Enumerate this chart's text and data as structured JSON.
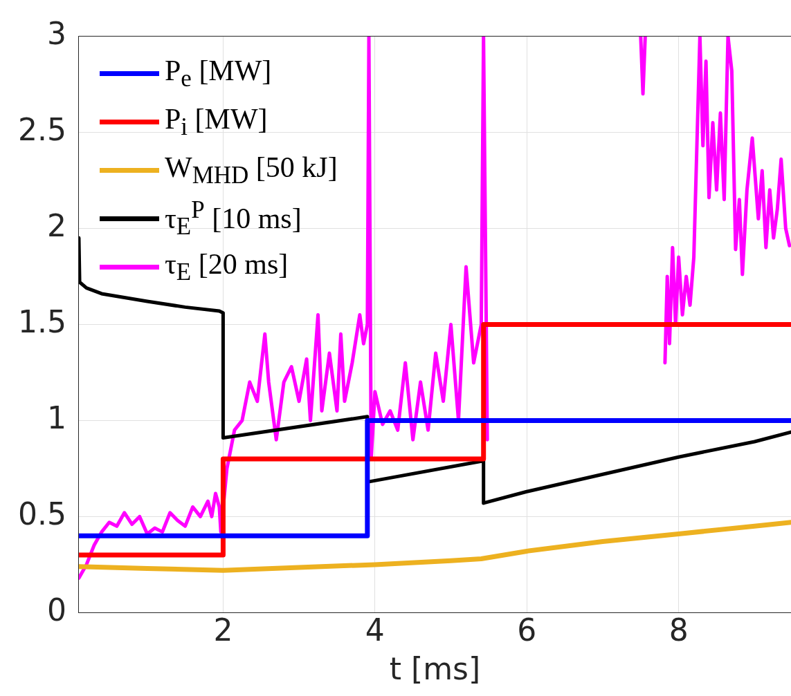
{
  "chart_data": {
    "type": "line",
    "xlabel": "t [ms]",
    "xlim": [
      0.1,
      9.48
    ],
    "ylim": [
      0,
      3
    ],
    "xticks": [
      2,
      4,
      6,
      8
    ],
    "yticks": [
      0,
      0.5,
      1,
      1.5,
      2,
      2.5,
      3
    ],
    "grid": true,
    "legend": "top left",
    "marker": "none",
    "line_style": "solid",
    "series": [
      {
        "name": "P$_{e}$ [MW]",
        "color": "#0000ff",
        "x": [
          0.1,
          3.9,
          3.9,
          9.48
        ],
        "values": [
          0.4,
          0.4,
          1.0,
          1.0
        ]
      },
      {
        "name": "P$_{i}$ [MW]",
        "color": "#ff0000",
        "x": [
          0.1,
          2.0,
          2.0,
          5.43,
          5.43,
          9.48
        ],
        "values": [
          0.3,
          0.3,
          0.8,
          0.8,
          1.5,
          1.5
        ]
      },
      {
        "name": "W$_{MHD}$ [50 kJ]",
        "color": "#edb120",
        "x": [
          0.1,
          1,
          2,
          3,
          4,
          5,
          5.4,
          6,
          7,
          8,
          9,
          9.48
        ],
        "values": [
          0.24,
          0.23,
          0.22,
          0.235,
          0.25,
          0.27,
          0.28,
          0.32,
          0.37,
          0.41,
          0.45,
          0.47
        ]
      },
      {
        "name": "τ$_{E}$$^{P}$ [10 ms]",
        "color": "#000000",
        "x": [
          0.1,
          0.11,
          0.2,
          0.4,
          0.7,
          1.0,
          1.5,
          1.95,
          2.0,
          2.0,
          3.9,
          3.9,
          5.43,
          5.43,
          6,
          7,
          8,
          9,
          9.48
        ],
        "values": [
          1.95,
          1.72,
          1.69,
          1.66,
          1.64,
          1.62,
          1.59,
          1.57,
          1.56,
          0.91,
          1.02,
          0.68,
          0.79,
          0.57,
          0.63,
          0.72,
          0.81,
          0.89,
          0.94
        ]
      },
      {
        "name": "τ$_{E}$ [20 ms]",
        "color": "#ff00ff",
        "x": [
          0.1,
          0.2,
          0.3,
          0.4,
          0.5,
          0.6,
          0.7,
          0.8,
          0.9,
          1.0,
          1.1,
          1.2,
          1.3,
          1.4,
          1.5,
          1.6,
          1.7,
          1.8,
          1.85,
          1.9,
          1.95,
          1.97,
          2.05,
          2.15,
          2.25,
          2.35,
          2.45,
          2.55,
          2.6,
          2.7,
          2.8,
          2.9,
          3.0,
          3.1,
          3.15,
          3.25,
          3.3,
          3.4,
          3.5,
          3.55,
          3.6,
          3.7,
          3.8,
          3.85,
          3.9,
          3.92,
          3.95,
          4.0,
          4.1,
          4.2,
          4.3,
          4.4,
          4.5,
          4.6,
          4.7,
          4.8,
          4.9,
          5.0,
          5.1,
          5.2,
          5.3,
          5.4,
          5.43,
          5.48,
          5.5,
          7.5,
          7.53,
          7.56,
          7.6,
          7.82,
          7.85,
          7.88,
          7.92,
          7.96,
          8.0,
          8.05,
          8.1,
          8.15,
          8.2,
          8.28,
          8.32,
          8.36,
          8.4,
          8.45,
          8.5,
          8.55,
          8.6,
          8.65,
          8.7,
          8.75,
          8.8,
          8.84,
          8.9,
          8.97,
          9.05,
          9.1,
          9.15,
          9.2,
          9.25,
          9.3,
          9.35,
          9.41,
          9.46
        ],
        "values": [
          0.18,
          0.25,
          0.35,
          0.42,
          0.47,
          0.45,
          0.52,
          0.46,
          0.5,
          0.41,
          0.44,
          0.42,
          0.52,
          0.48,
          0.45,
          0.55,
          0.5,
          0.58,
          0.5,
          0.62,
          0.55,
          0.42,
          0.75,
          0.95,
          1.0,
          1.2,
          1.1,
          1.45,
          1.2,
          0.9,
          1.2,
          1.28,
          1.1,
          1.32,
          1.0,
          1.55,
          1.05,
          1.35,
          1.05,
          1.45,
          1.1,
          1.3,
          1.55,
          1.4,
          1.5,
          3.0,
          0.8,
          1.15,
          0.98,
          1.05,
          0.95,
          1.3,
          0.9,
          1.2,
          0.95,
          1.35,
          1.1,
          1.5,
          1.0,
          1.8,
          1.3,
          1.5,
          3.0,
          0.9,
          null,
          3.0,
          2.7,
          3.0,
          null,
          1.3,
          1.75,
          1.4,
          1.9,
          1.5,
          1.85,
          1.55,
          1.75,
          1.6,
          1.85,
          3.0,
          2.43,
          2.87,
          2.16,
          2.55,
          2.2,
          2.6,
          2.15,
          3.0,
          2.82,
          1.89,
          2.15,
          1.76,
          2.2,
          2.47,
          2.05,
          2.3,
          1.9,
          2.2,
          1.95,
          2.1,
          2.36,
          2.0,
          1.91
        ]
      }
    ]
  }
}
